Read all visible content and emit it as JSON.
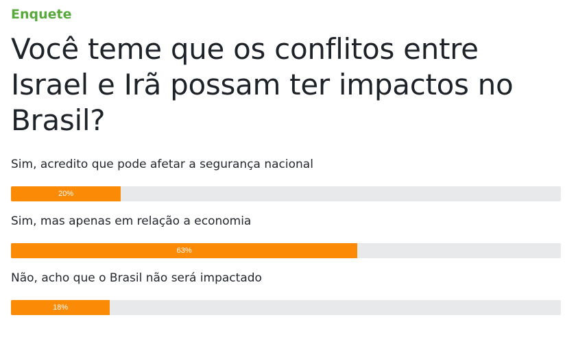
{
  "poll": {
    "kicker": "Enquete",
    "question": "Você teme que os conflitos entre Israel e Irã possam ter impactos no Brasil?",
    "accent_color": "#56a93a",
    "bar_color": "#fb8a07",
    "track_color": "#e7e9eb",
    "options": [
      {
        "label": "Sim, acredito que pode afetar a segurança nacional",
        "percent": 20,
        "percent_label": "20%"
      },
      {
        "label": "Sim, mas apenas em relação a economia",
        "percent": 63,
        "percent_label": "63%"
      },
      {
        "label": "Não, acho que o Brasil não será impactado",
        "percent": 18,
        "percent_label": "18%"
      }
    ]
  }
}
